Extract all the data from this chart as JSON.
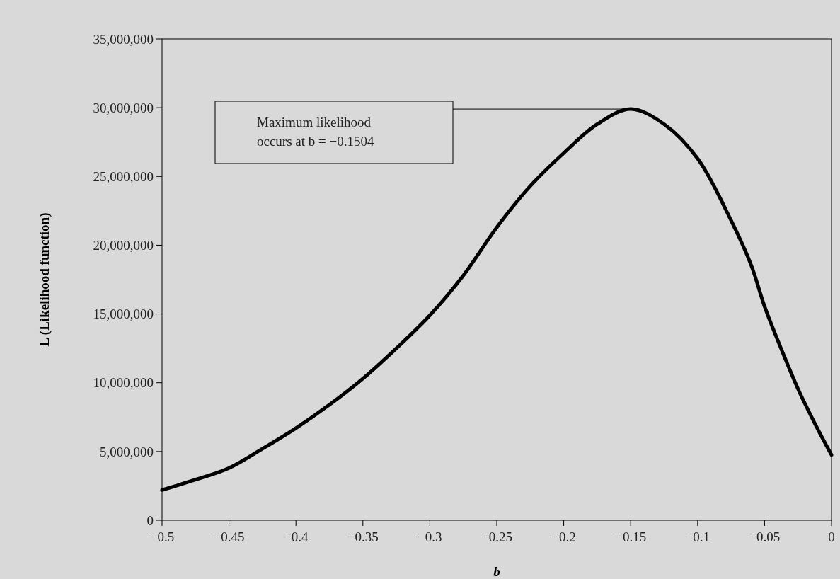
{
  "chart_data": {
    "type": "line",
    "xlabel": "b",
    "ylabel": "L (Likelihood function)",
    "x": [
      -0.5,
      -0.475,
      -0.45,
      -0.425,
      -0.4,
      -0.375,
      -0.35,
      -0.325,
      -0.3,
      -0.275,
      -0.25,
      -0.225,
      -0.2,
      -0.175,
      -0.15,
      -0.125,
      -0.1,
      -0.075,
      -0.06,
      -0.05,
      -0.04,
      -0.025,
      -0.0125,
      0
    ],
    "series": [
      {
        "color": "#000000",
        "values": [
          2200000,
          2950000,
          3800000,
          5200000,
          6700000,
          8400000,
          10300000,
          12500000,
          14900000,
          17800000,
          21300000,
          24300000,
          26700000,
          28800000,
          29900000,
          28800000,
          26300000,
          21800000,
          18550000,
          15550000,
          13050000,
          9550000,
          7050000,
          4750000
        ]
      }
    ],
    "xlim": [
      -0.5,
      0
    ],
    "xticks": [
      {
        "value": -0.5,
        "label": "−0.5"
      },
      {
        "value": -0.45,
        "label": "−0.45"
      },
      {
        "value": -0.4,
        "label": "−0.4"
      },
      {
        "value": -0.35,
        "label": "−0.35"
      },
      {
        "value": -0.3,
        "label": "−0.3"
      },
      {
        "value": -0.25,
        "label": "−0.25"
      },
      {
        "value": -0.2,
        "label": "−0.2"
      },
      {
        "value": -0.15,
        "label": "−0.15"
      },
      {
        "value": -0.1,
        "label": "−0.1"
      },
      {
        "value": -0.05,
        "label": "−0.05"
      },
      0
    ],
    "ylim": [
      0,
      35000000
    ],
    "yticks": [
      0,
      {
        "value": 5000000,
        "label": "5,000,000"
      },
      {
        "value": 10000000,
        "label": "10,000,000"
      },
      {
        "value": 15000000,
        "label": "15,000,000"
      },
      {
        "value": 20000000,
        "label": "20,000,000"
      },
      {
        "value": 25000000,
        "label": "25,000,000"
      },
      {
        "value": 30000000,
        "label": "30,000,000"
      },
      {
        "value": 35000000,
        "label": "35,000,000"
      }
    ],
    "annotations": [
      "Maximum likelihood occurs at b = −0.1504"
    ],
    "grid": false,
    "marker": "none",
    "line_style": "solid"
  }
}
